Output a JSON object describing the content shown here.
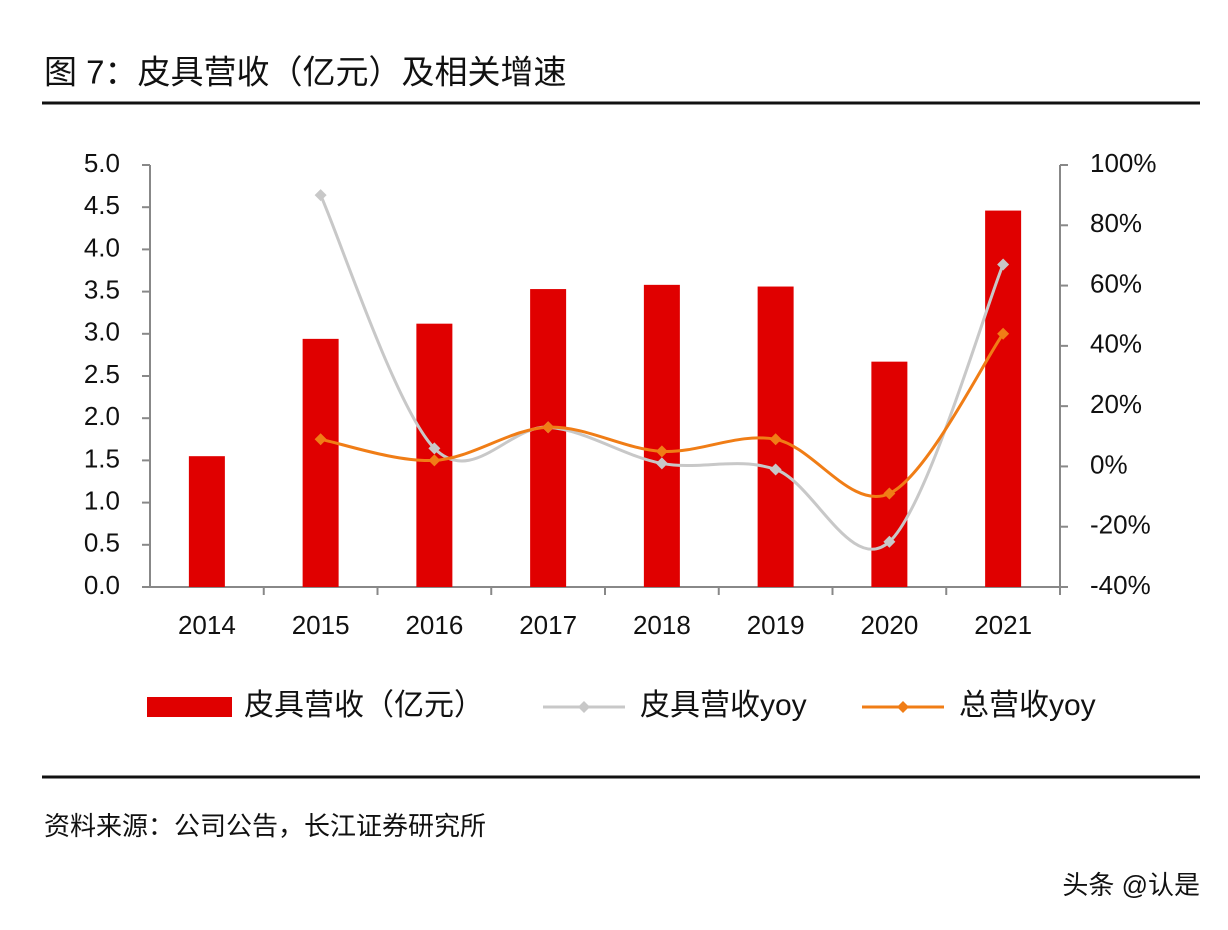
{
  "chart_data": {
    "type": "bar",
    "title": "图 7：皮具营收（亿元）及相关增速",
    "categories": [
      "2014",
      "2015",
      "2016",
      "2017",
      "2018",
      "2019",
      "2020",
      "2021"
    ],
    "series": [
      {
        "name": "皮具营收（亿元）",
        "type": "bar",
        "color": "#e00000",
        "values": [
          1.55,
          2.94,
          3.12,
          3.53,
          3.58,
          3.56,
          2.67,
          4.46
        ]
      },
      {
        "name": "皮具营收yoy",
        "type": "line",
        "axis": "y2",
        "color": "#c8c8c8",
        "values": [
          null,
          90,
          6,
          13,
          1,
          -1,
          -25,
          67
        ]
      },
      {
        "name": "总营收yoy",
        "type": "line",
        "axis": "y2",
        "color": "#f07d16",
        "values": [
          null,
          9,
          2,
          13,
          5,
          9,
          -9,
          44
        ]
      }
    ],
    "ylim": [
      0,
      5
    ],
    "yticks": [
      {
        "value": 0,
        "label": "0.0"
      },
      0.5,
      {
        "value": 1,
        "label": "1.0"
      },
      1.5,
      {
        "value": 2,
        "label": "2.0"
      },
      2.5,
      {
        "value": 3,
        "label": "3.0"
      },
      3.5,
      {
        "value": 4,
        "label": "4.0"
      },
      4.5,
      {
        "value": 5,
        "label": "5.0"
      }
    ],
    "y2lim": [
      -40,
      100
    ],
    "y2ticks": [
      {
        "value": -40,
        "label": "-40%"
      },
      {
        "value": -20,
        "label": "-20%"
      },
      {
        "value": 0,
        "label": "0%"
      },
      {
        "value": 20,
        "label": "20%"
      },
      {
        "value": 40,
        "label": "40%"
      },
      {
        "value": 60,
        "label": "60%"
      },
      {
        "value": 80,
        "label": "80%"
      },
      {
        "value": 100,
        "label": "100%"
      }
    ],
    "grid": false,
    "legend": "bottom",
    "source": "资料来源：公司公告，长江证券研究所",
    "watermark": "头条 @认是"
  }
}
